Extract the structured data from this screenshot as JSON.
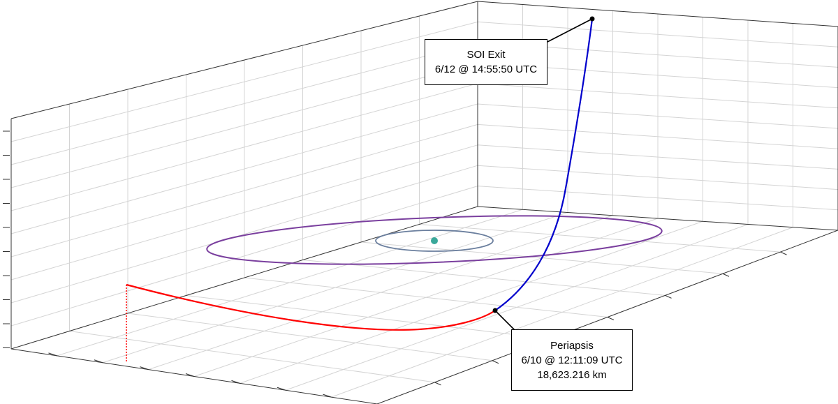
{
  "colors": {
    "background": "#ffffff",
    "frame": "#333333",
    "grid": "#d4d4d4",
    "approach_trajectory": "#ff0000",
    "departure_trajectory": "#0000cc",
    "outer_orbit": "#7a3f9e",
    "inner_orbit": "#6b7f9e",
    "central_body": "#3aa89a",
    "marker": "#000000"
  },
  "annotations": {
    "soi_exit": {
      "title": "SOI Exit",
      "time": "6/12 @ 14:55:50 UTC"
    },
    "periapsis": {
      "title": "Periapsis",
      "time": "6/10 @ 12:11:09 UTC",
      "distance": "18,623.216 km"
    }
  }
}
